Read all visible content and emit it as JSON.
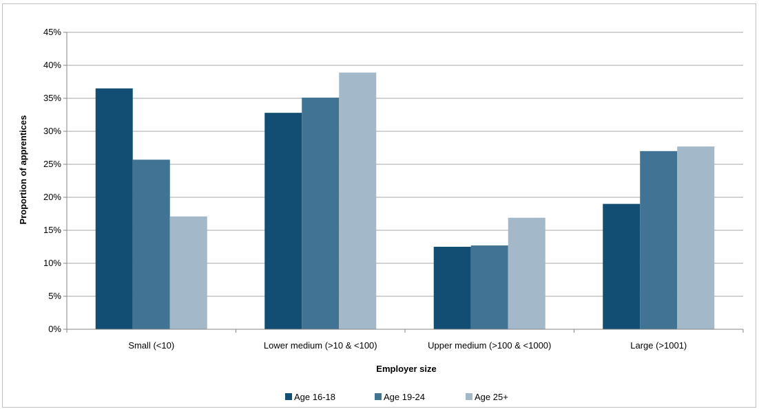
{
  "chart_data": {
    "type": "bar",
    "title": "",
    "xlabel": "Employer size",
    "ylabel": "Proportion of apprentices",
    "ylim": [
      0,
      45
    ],
    "yticks": [
      "0%",
      "5%",
      "10%",
      "15%",
      "20%",
      "25%",
      "30%",
      "35%",
      "40%",
      "45%"
    ],
    "categories": [
      "Small (<10)",
      "Lower medium (>10 & <100)",
      "Upper medium (>100 & <1000)",
      "Large (>1001)"
    ],
    "series": [
      {
        "name": "Age 16-18",
        "color": "#124e74",
        "values": [
          36.5,
          32.8,
          12.5,
          19.0
        ]
      },
      {
        "name": "Age 19-24",
        "color": "#417394",
        "values": [
          25.7,
          35.1,
          12.7,
          27.0
        ]
      },
      {
        "name": "Age 25+",
        "color": "#a3b8c9",
        "values": [
          17.1,
          38.9,
          16.9,
          27.7
        ]
      }
    ],
    "grid": true,
    "legend": "bottom"
  }
}
